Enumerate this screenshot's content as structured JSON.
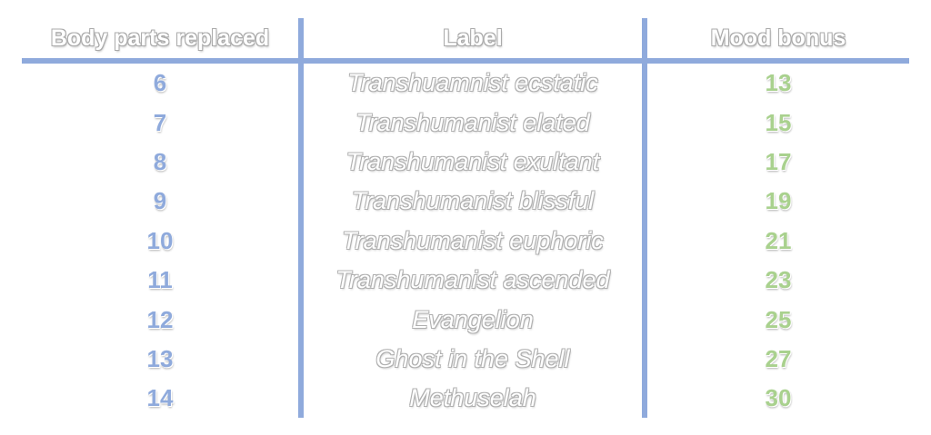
{
  "table": {
    "headers": {
      "body_parts": "Body parts replaced",
      "label": "Label",
      "mood_bonus": "Mood bonus"
    },
    "rows": [
      {
        "body_parts": "6",
        "label": "Transhuamnist ecstatic",
        "mood_bonus": "13"
      },
      {
        "body_parts": "7",
        "label": "Transhumanist elated",
        "mood_bonus": "15"
      },
      {
        "body_parts": "8",
        "label": "Transhumanist exultant",
        "mood_bonus": "17"
      },
      {
        "body_parts": "9",
        "label": "Transhumanist blissful",
        "mood_bonus": "19"
      },
      {
        "body_parts": "10",
        "label": "Transhumanist euphoric",
        "mood_bonus": "21"
      },
      {
        "body_parts": "11",
        "label": "Transhumanist ascended",
        "mood_bonus": "23"
      },
      {
        "body_parts": "12",
        "label": "Evangelion",
        "mood_bonus": "25"
      },
      {
        "body_parts": "13",
        "label": "Ghost in the Shell",
        "mood_bonus": "27"
      },
      {
        "body_parts": "14",
        "label": "Methuselah",
        "mood_bonus": "30"
      }
    ]
  },
  "colors": {
    "grid_line": "#8faadc",
    "body_parts_text": "#8faadc",
    "mood_bonus_text": "#a9d18e",
    "outline_text": "#b0b0b0"
  }
}
